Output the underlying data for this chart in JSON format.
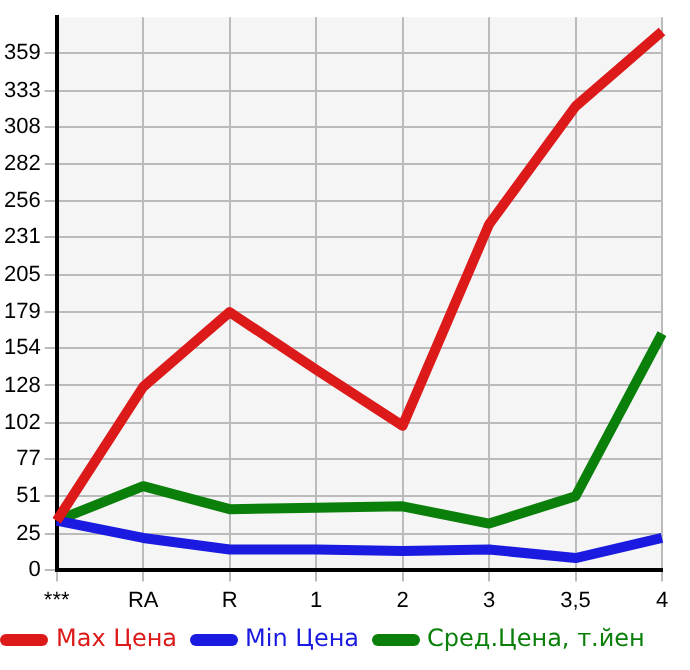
{
  "chart_data": {
    "type": "line",
    "categories": [
      "***",
      "RA",
      "R",
      "1",
      "2",
      "3",
      "3,5",
      "4"
    ],
    "series": [
      {
        "name": "Max Цена",
        "color": "#dd1a1a",
        "values": [
          34,
          127,
          179,
          139,
          100,
          240,
          322,
          374
        ]
      },
      {
        "name": "Min Цена",
        "color": "#1a1ae0",
        "values": [
          34,
          22,
          14,
          14,
          13,
          14,
          8,
          22
        ]
      },
      {
        "name": "Сред.Цена, т.йен",
        "color": "#0a800a",
        "values": [
          34,
          58,
          42,
          43,
          44,
          32,
          51,
          164
        ]
      }
    ],
    "ylim": [
      0,
      384
    ],
    "yticks": [
      0,
      25,
      51,
      77,
      102,
      128,
      154,
      179,
      205,
      231,
      256,
      282,
      308,
      333,
      359
    ],
    "grid": true,
    "legend": "bottom",
    "marker": "none",
    "line_style": "solid"
  }
}
